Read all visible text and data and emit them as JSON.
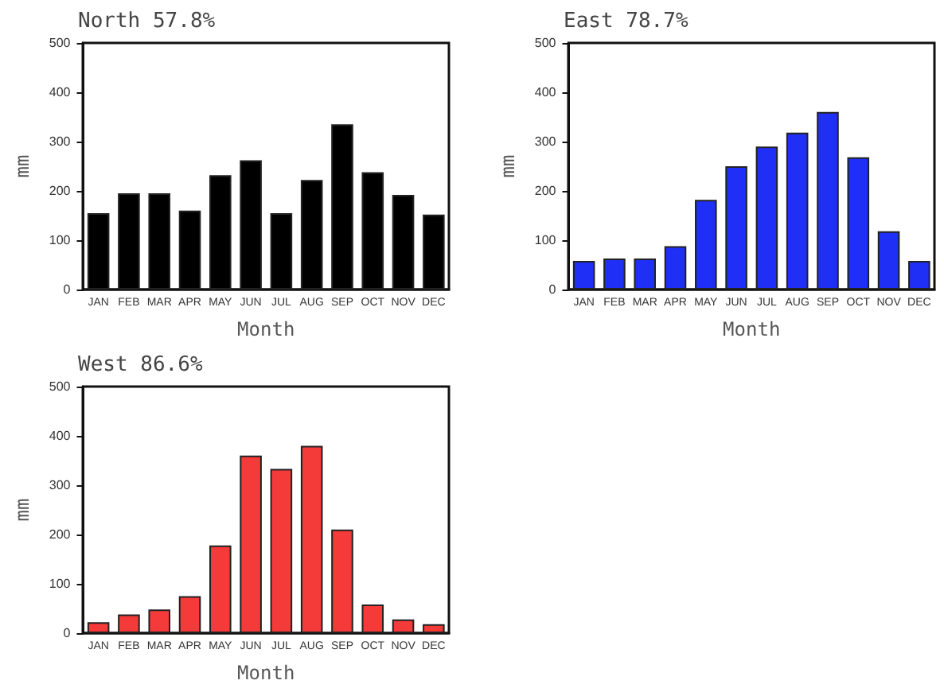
{
  "chart_data": [
    {
      "type": "bar",
      "title": "North 57.8%",
      "xlabel": "Month",
      "ylabel": "mm",
      "categories": [
        "JAN",
        "FEB",
        "MAR",
        "APR",
        "MAY",
        "JUN",
        "JUL",
        "AUG",
        "SEP",
        "OCT",
        "NOV",
        "DEC"
      ],
      "values": [
        155,
        195,
        195,
        160,
        232,
        262,
        155,
        222,
        335,
        238,
        192,
        152
      ],
      "color": "#000000",
      "ylim": [
        0,
        500
      ],
      "yticks": [
        0,
        100,
        200,
        300,
        400,
        500
      ]
    },
    {
      "type": "bar",
      "title": "East 78.7%",
      "xlabel": "Month",
      "ylabel": "mm",
      "categories": [
        "JAN",
        "FEB",
        "MAR",
        "APR",
        "MAY",
        "JUN",
        "JUL",
        "AUG",
        "SEP",
        "OCT",
        "NOV",
        "DEC"
      ],
      "values": [
        58,
        63,
        63,
        88,
        182,
        250,
        290,
        318,
        360,
        268,
        118,
        58
      ],
      "color": "#1f2ff5",
      "ylim": [
        0,
        500
      ],
      "yticks": [
        0,
        100,
        200,
        300,
        400,
        500
      ]
    },
    {
      "type": "bar",
      "title": "West 86.6%",
      "xlabel": "Month",
      "ylabel": "mm",
      "categories": [
        "JAN",
        "FEB",
        "MAR",
        "APR",
        "MAY",
        "JUN",
        "JUL",
        "AUG",
        "SEP",
        "OCT",
        "NOV",
        "DEC"
      ],
      "values": [
        22,
        38,
        48,
        75,
        178,
        360,
        333,
        380,
        210,
        58,
        28,
        18
      ],
      "color": "#f53a3a",
      "ylim": [
        0,
        500
      ],
      "yticks": [
        0,
        100,
        200,
        300,
        400,
        500
      ]
    }
  ]
}
